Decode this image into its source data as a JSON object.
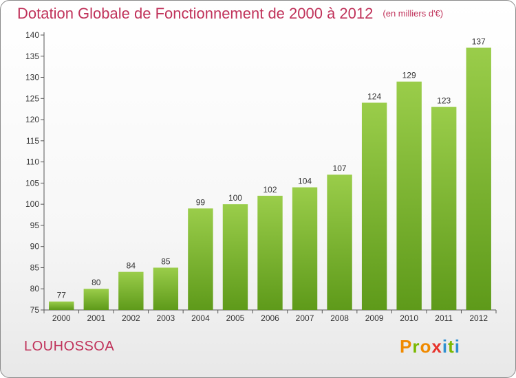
{
  "header": {
    "title": "Dotation Globale de Fonctionnement de 2000 à 2012",
    "unit_note": "(en milliers d'€)"
  },
  "footer": {
    "commune": "LOUHOSSOA",
    "logo_text": "Proxiti",
    "logo_colors": [
      "#f08a00",
      "#2f8fd0",
      "#7ab800",
      "#e7332c"
    ]
  },
  "colors": {
    "bar_top": "#9acd4a",
    "bar_bottom": "#5e9a1a",
    "title": "#c0325a"
  },
  "chart_data": {
    "type": "bar",
    "categories": [
      "2000",
      "2001",
      "2002",
      "2003",
      "2004",
      "2005",
      "2006",
      "2007",
      "2008",
      "2009",
      "2010",
      "2011",
      "2012"
    ],
    "values": [
      77,
      80,
      84,
      85,
      99,
      100,
      102,
      104,
      107,
      124,
      129,
      123,
      137
    ],
    "ylim": [
      75,
      140
    ],
    "yticks": [
      75,
      80,
      85,
      90,
      95,
      100,
      105,
      110,
      115,
      120,
      125,
      130,
      135,
      140
    ],
    "grid": false,
    "data_labels": true
  }
}
